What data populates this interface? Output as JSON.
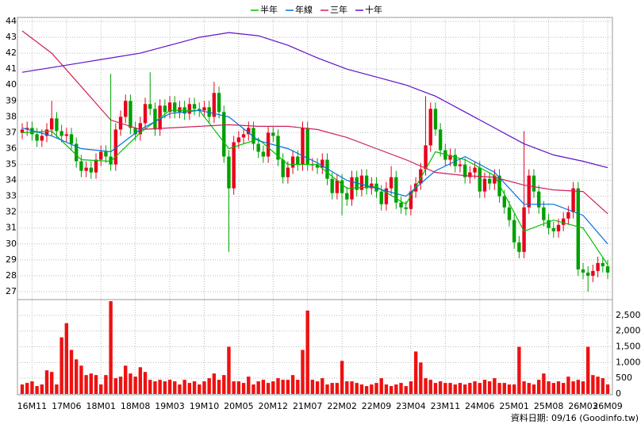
{
  "chart_data": {
    "type": "candlestick",
    "legend_position": "top",
    "grid": true,
    "categories": [
      null,
      null,
      "16M11",
      null,
      null,
      null,
      null,
      null,
      null,
      "17M06",
      null,
      null,
      null,
      null,
      null,
      null,
      "18M01",
      null,
      null,
      null,
      null,
      null,
      null,
      "18M08",
      null,
      null,
      null,
      null,
      null,
      null,
      "19M03",
      null,
      null,
      null,
      null,
      null,
      null,
      "19M10",
      null,
      null,
      null,
      null,
      null,
      null,
      "20M05",
      null,
      null,
      null,
      null,
      null,
      null,
      "20M12",
      null,
      null,
      null,
      null,
      null,
      null,
      "21M07",
      null,
      null,
      null,
      null,
      null,
      null,
      "22M02",
      null,
      null,
      null,
      null,
      null,
      null,
      "22M09",
      null,
      null,
      null,
      null,
      null,
      null,
      "23M04",
      null,
      null,
      null,
      null,
      null,
      null,
      "23M11",
      null,
      null,
      null,
      null,
      null,
      null,
      "24M06",
      null,
      null,
      null,
      null,
      null,
      null,
      "25M01",
      null,
      null,
      null,
      null,
      null,
      null,
      "25M08",
      null,
      null,
      null,
      null,
      null,
      null,
      "26M03",
      null,
      null,
      null,
      null,
      "26M09"
    ],
    "open": [
      37.0,
      37.2,
      37.3,
      36.9,
      36.5,
      36.8,
      37.2,
      37.9,
      37.1,
      36.8,
      36.9,
      36.3,
      35.2,
      34.6,
      34.8,
      34.5,
      35.3,
      35.8,
      35.5,
      35.0,
      37.2,
      38.0,
      39.0,
      37.3,
      36.9,
      37.6,
      38.8,
      38.5,
      37.2,
      38.7,
      38.3,
      38.9,
      38.3,
      38.6,
      38.2,
      38.8,
      38.5,
      38.4,
      38.6,
      38.0,
      39.5,
      38.3,
      35.5,
      33.5,
      36.4,
      36.7,
      36.9,
      37.3,
      36.3,
      35.8,
      35.5,
      37.0,
      36.8,
      35.3,
      34.2,
      34.8,
      35.5,
      35.0,
      37.3,
      35.0,
      35.0,
      34.8,
      35.3,
      34.1,
      33.2,
      34.0,
      33.2,
      32.8,
      34.2,
      33.4,
      34.3,
      33.5,
      33.8,
      33.3,
      32.5,
      33.5,
      34.2,
      32.6,
      32.3,
      32.2,
      33.3,
      33.8,
      34.7,
      36.2,
      38.5,
      37.2,
      35.9,
      35.3,
      35.6,
      34.9,
      35.0,
      34.2,
      34.5,
      34.8,
      33.3,
      34.1,
      33.8,
      34.3,
      33.0,
      32.3,
      31.5,
      30.1,
      29.5,
      32.3,
      34.3,
      33.3,
      32.3,
      31.5,
      31.0,
      30.8,
      31.2,
      31.6,
      32.0,
      33.5,
      28.4,
      28.2,
      28.0,
      28.3,
      28.8,
      28.6
    ],
    "high": [
      37.6,
      37.7,
      37.7,
      37.3,
      37.2,
      37.6,
      39.0,
      38.3,
      37.5,
      37.3,
      37.3,
      36.7,
      35.6,
      35.2,
      35.2,
      35.7,
      36.2,
      36.2,
      40.7,
      37.6,
      38.4,
      39.4,
      39.4,
      37.7,
      38.0,
      39.2,
      40.8,
      38.9,
      39.1,
      39.1,
      39.3,
      39.3,
      39.0,
      39.0,
      39.2,
      39.2,
      38.9,
      39.0,
      39.0,
      40.2,
      39.9,
      38.7,
      35.9,
      36.8,
      37.1,
      37.3,
      37.7,
      37.7,
      36.7,
      36.2,
      37.4,
      37.4,
      37.2,
      35.7,
      35.2,
      35.9,
      35.9,
      37.7,
      37.7,
      35.4,
      35.4,
      35.7,
      35.7,
      34.5,
      34.4,
      34.4,
      33.6,
      34.6,
      34.6,
      34.7,
      34.7,
      34.2,
      34.2,
      33.7,
      33.9,
      34.9,
      34.6,
      33.0,
      32.7,
      33.7,
      34.2,
      35.1,
      39.3,
      38.9,
      38.9,
      37.6,
      36.3,
      36.0,
      36.0,
      35.4,
      35.4,
      34.9,
      35.2,
      35.2,
      34.5,
      34.5,
      34.7,
      34.7,
      33.4,
      32.7,
      31.9,
      30.5,
      37.1,
      34.7,
      34.7,
      33.7,
      32.7,
      31.9,
      31.4,
      31.6,
      32.0,
      32.4,
      33.9,
      33.9,
      28.8,
      28.6,
      28.7,
      29.2,
      29.2,
      29.0
    ],
    "low": [
      36.6,
      36.8,
      36.5,
      36.1,
      36.1,
      36.4,
      36.8,
      36.7,
      36.4,
      36.4,
      35.9,
      34.8,
      34.2,
      34.2,
      34.1,
      34.1,
      34.9,
      35.1,
      34.6,
      34.6,
      36.8,
      37.6,
      36.9,
      36.5,
      36.5,
      37.2,
      38.1,
      36.8,
      36.8,
      37.9,
      37.9,
      37.9,
      37.9,
      37.8,
      37.8,
      38.1,
      38.0,
      38.0,
      37.6,
      37.6,
      37.9,
      35.1,
      29.5,
      33.1,
      36.0,
      36.3,
      36.5,
      35.9,
      35.4,
      35.1,
      35.1,
      36.4,
      34.9,
      33.8,
      33.8,
      34.4,
      34.6,
      34.6,
      34.6,
      34.6,
      34.4,
      34.4,
      33.7,
      32.8,
      32.8,
      31.8,
      32.4,
      32.4,
      33.0,
      33.0,
      33.1,
      33.1,
      32.9,
      32.1,
      32.1,
      33.1,
      32.2,
      31.9,
      31.8,
      31.8,
      32.9,
      33.4,
      34.3,
      35.8,
      36.8,
      35.5,
      34.9,
      34.9,
      34.5,
      34.5,
      33.8,
      33.8,
      34.1,
      32.9,
      32.9,
      33.4,
      33.4,
      32.6,
      31.9,
      31.1,
      29.7,
      29.1,
      29.1,
      31.9,
      32.9,
      31.9,
      31.1,
      30.6,
      30.4,
      30.4,
      30.8,
      31.2,
      31.6,
      28.0,
      27.8,
      27.0,
      27.6,
      27.9,
      28.2,
      27.8
    ],
    "close": [
      37.2,
      37.3,
      36.9,
      36.5,
      36.8,
      37.2,
      37.9,
      37.1,
      36.8,
      36.9,
      36.3,
      35.2,
      34.6,
      34.8,
      34.5,
      35.3,
      35.8,
      35.5,
      35.0,
      37.2,
      38.0,
      39.0,
      37.3,
      36.9,
      37.6,
      38.8,
      38.5,
      37.2,
      38.7,
      38.3,
      38.9,
      38.3,
      38.6,
      38.2,
      38.8,
      38.5,
      38.4,
      38.6,
      38.0,
      39.5,
      38.3,
      35.5,
      33.5,
      36.4,
      36.7,
      36.9,
      37.3,
      36.3,
      35.8,
      35.5,
      37.0,
      36.8,
      35.3,
      34.2,
      34.8,
      35.5,
      35.0,
      37.3,
      35.0,
      35.0,
      34.8,
      35.3,
      34.1,
      33.2,
      34.0,
      33.2,
      32.8,
      34.2,
      33.4,
      34.3,
      33.5,
      33.8,
      33.3,
      32.5,
      33.5,
      34.2,
      32.6,
      32.3,
      32.2,
      33.3,
      33.8,
      34.7,
      36.2,
      38.5,
      37.2,
      35.9,
      35.3,
      35.6,
      34.9,
      35.0,
      34.2,
      34.5,
      34.8,
      33.3,
      34.1,
      33.8,
      34.3,
      33.0,
      32.3,
      31.5,
      30.1,
      29.5,
      32.3,
      34.3,
      33.3,
      32.3,
      31.5,
      31.0,
      30.8,
      31.2,
      31.6,
      32.0,
      33.5,
      28.4,
      28.2,
      28.0,
      28.3,
      28.8,
      28.6,
      28.2
    ],
    "up_color": "#e8001c",
    "down_color": "#00a000",
    "ylim": [
      26.5,
      44.25
    ],
    "yticks": [
      27,
      28,
      29,
      30,
      31,
      32,
      33,
      34,
      35,
      36,
      37,
      38,
      39,
      40,
      41,
      42,
      43,
      44
    ],
    "lines": [
      {
        "name": "半年",
        "color": "#00c000",
        "x": [
          0,
          6,
          12,
          18,
          24,
          30,
          36,
          42,
          48,
          54,
          60,
          66,
          72,
          78,
          84,
          90,
          96,
          102,
          108,
          114,
          119
        ],
        "values": [
          37.0,
          37.1,
          35.3,
          35.2,
          37.0,
          38.4,
          38.4,
          36.0,
          36.6,
          35.0,
          35.0,
          33.5,
          33.6,
          32.5,
          35.8,
          35.3,
          34.3,
          30.8,
          31.5,
          31.0,
          28.7
        ]
      },
      {
        "name": "年線",
        "color": "#0070e0",
        "x": [
          0,
          6,
          12,
          18,
          24,
          30,
          36,
          42,
          48,
          54,
          60,
          66,
          72,
          78,
          84,
          90,
          96,
          102,
          108,
          114,
          119
        ],
        "values": [
          37.3,
          36.8,
          36.0,
          35.8,
          37.2,
          38.2,
          38.4,
          38.0,
          36.5,
          36.0,
          35.1,
          34.0,
          33.5,
          33.0,
          34.6,
          35.5,
          34.5,
          32.5,
          32.5,
          31.8,
          30.0
        ]
      },
      {
        "name": "三年",
        "color": "#d0205a",
        "x": [
          0,
          6,
          12,
          18,
          24,
          30,
          36,
          42,
          48,
          54,
          60,
          66,
          72,
          78,
          84,
          90,
          96,
          102,
          108,
          114,
          119
        ],
        "values": [
          43.4,
          42.0,
          39.9,
          37.8,
          37.2,
          37.3,
          37.4,
          37.5,
          37.4,
          37.4,
          37.2,
          36.7,
          36.0,
          35.3,
          34.5,
          34.3,
          34.2,
          33.7,
          33.4,
          33.3,
          31.9
        ]
      },
      {
        "name": "十年",
        "color": "#6010c8",
        "x": [
          0,
          6,
          12,
          18,
          24,
          30,
          36,
          42,
          48,
          54,
          60,
          66,
          72,
          78,
          84,
          90,
          96,
          102,
          108,
          114,
          119
        ],
        "values": [
          40.8,
          41.1,
          41.4,
          41.7,
          42.0,
          42.5,
          43.0,
          43.3,
          43.1,
          42.5,
          41.7,
          41.0,
          40.5,
          40.0,
          39.3,
          38.3,
          37.3,
          36.3,
          35.6,
          35.2,
          34.8
        ]
      }
    ],
    "volume": {
      "type": "bar",
      "color": "#ee1111",
      "values": [
        300,
        350,
        400,
        250,
        300,
        750,
        700,
        300,
        1800,
        2250,
        1400,
        1100,
        900,
        600,
        650,
        600,
        300,
        600,
        2950,
        500,
        550,
        900,
        650,
        550,
        850,
        700,
        450,
        400,
        450,
        400,
        450,
        400,
        300,
        450,
        350,
        400,
        300,
        400,
        500,
        650,
        450,
        600,
        1500,
        400,
        400,
        350,
        550,
        300,
        400,
        450,
        350,
        400,
        500,
        450,
        450,
        600,
        450,
        1400,
        2650,
        450,
        400,
        500,
        300,
        350,
        350,
        1050,
        400,
        400,
        350,
        300,
        250,
        300,
        350,
        500,
        300,
        250,
        300,
        350,
        250,
        400,
        1350,
        1000,
        500,
        450,
        350,
        400,
        350,
        350,
        300,
        350,
        300,
        350,
        400,
        350,
        450,
        400,
        500,
        350,
        350,
        300,
        300,
        1500,
        400,
        350,
        300,
        450,
        650,
        400,
        350,
        400,
        350,
        550,
        400,
        450,
        400,
        1500,
        600,
        550,
        500,
        300
      ],
      "ylim": [
        0,
        3000
      ],
      "yticks": [
        0,
        500,
        {
          "value": 1000,
          "label": "1,000"
        },
        {
          "value": 1500,
          "label": "1,500"
        },
        {
          "value": 2000,
          "label": "2,000"
        },
        {
          "value": 2500,
          "label": "2,500"
        }
      ]
    }
  },
  "footer": "資料日期: 09/16 (Goodinfo.tw)"
}
